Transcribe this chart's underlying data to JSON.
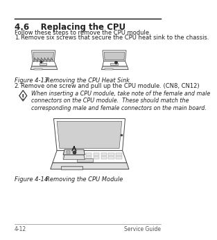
{
  "page_bg": "#ffffff",
  "title": "4.6    Replacing the CPU",
  "title_fontsize": 8.5,
  "intro_text": "Follow these steps to remove the CPU module.",
  "intro_fontsize": 6.0,
  "step1_label": "1.",
  "step1_text": "Remove six screws that secure the CPU heat sink to the chassis.",
  "step1_fontsize": 6.0,
  "fig1_caption_label": "Figure 4-13",
  "fig1_caption_text": "Removing the CPU Heat Sink",
  "step2_label": "2.",
  "step2_text": "Remove one screw and pull up the CPU module. (CN8, CN12)",
  "step2_fontsize": 6.0,
  "warning_text": "When inserting a CPU module, take note of the female and male\nconnectors on the CPU module.  These should match the\ncorresponding male and female connectors on the main board.",
  "warning_fontsize": 5.8,
  "fig2_caption_label": "Figure 4-14",
  "fig2_caption_text": "Removing the CPU Module",
  "footer_left": "4-12",
  "footer_right": "Service Guide",
  "footer_fontsize": 5.5,
  "caption_fontsize": 6.0,
  "text_color": "#222222",
  "line_color": "#111111",
  "sketch_edge": "#444444",
  "sketch_face": "#f0f0f0",
  "screen_face": "#c8c8c8"
}
